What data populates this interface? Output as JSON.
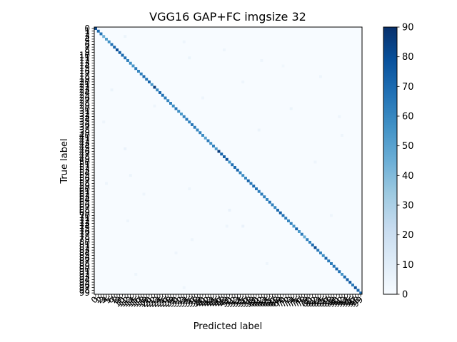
{
  "chart_data": {
    "type": "heatmap",
    "title": "VGG16 GAP+FC imgsize 32",
    "xlabel": "Predicted label",
    "ylabel": "True label",
    "n_classes": 100,
    "tick_labels": [
      "0",
      "1",
      "2",
      "3",
      "4",
      "5",
      "6",
      "7",
      "8",
      "9",
      "10",
      "11",
      "12",
      "13",
      "14",
      "15",
      "16",
      "17",
      "18",
      "19",
      "20",
      "21",
      "22",
      "23",
      "24",
      "25",
      "26",
      "27",
      "28",
      "29",
      "30",
      "31",
      "32",
      "33",
      "34",
      "35",
      "36",
      "37",
      "38",
      "39",
      "40",
      "41",
      "42",
      "43",
      "44",
      "45",
      "46",
      "47",
      "48",
      "49",
      "50",
      "51",
      "52",
      "53",
      "54",
      "55",
      "56",
      "57",
      "58",
      "59",
      "60",
      "61",
      "62",
      "63",
      "64",
      "65",
      "66",
      "67",
      "68",
      "69",
      "70",
      "71",
      "72",
      "73",
      "74",
      "75",
      "76",
      "77",
      "78",
      "79",
      "80",
      "81",
      "82",
      "83",
      "84",
      "85",
      "86",
      "87",
      "88",
      "89",
      "90",
      "91",
      "92",
      "93",
      "94",
      "95",
      "96",
      "97",
      "98",
      "99"
    ],
    "colormap": "Blues",
    "colorbar": {
      "min": 0,
      "max": 90,
      "ticks": [
        0,
        10,
        20,
        30,
        40,
        50,
        60,
        70,
        80,
        90
      ]
    },
    "diagonal_values": [
      82,
      70,
      66,
      45,
      52,
      57,
      68,
      72,
      80,
      75,
      70,
      68,
      62,
      58,
      55,
      64,
      60,
      63,
      70,
      66,
      72,
      55,
      86,
      60,
      72,
      68,
      64,
      60,
      62,
      58,
      66,
      58,
      54,
      62,
      65,
      62,
      66,
      64,
      60,
      62,
      58,
      50,
      64,
      58,
      62,
      55,
      86,
      72,
      75,
      80,
      56,
      68,
      70,
      72,
      62,
      58,
      60,
      72,
      66,
      70,
      68,
      64,
      64,
      62,
      60,
      68,
      62,
      60,
      70,
      75,
      68,
      64,
      60,
      62,
      55,
      72,
      54,
      64,
      46,
      62,
      62,
      70,
      82,
      66,
      62,
      58,
      72,
      64,
      64,
      66,
      72,
      68,
      55,
      70,
      74,
      76,
      64,
      80,
      72,
      68
    ],
    "off_diagonal": [
      {
        "true": 3,
        "pred": 11,
        "value": 5
      },
      {
        "true": 5,
        "pred": 33,
        "value": 4
      },
      {
        "true": 8,
        "pred": 48,
        "value": 4
      },
      {
        "true": 10,
        "pred": 10,
        "value": 70
      },
      {
        "true": 11,
        "pred": 35,
        "value": 5
      },
      {
        "true": 12,
        "pred": 62,
        "value": 4
      },
      {
        "true": 14,
        "pred": 70,
        "value": 3
      },
      {
        "true": 18,
        "pred": 84,
        "value": 4
      },
      {
        "true": 20,
        "pred": 55,
        "value": 4
      },
      {
        "true": 23,
        "pred": 6,
        "value": 5
      },
      {
        "true": 26,
        "pred": 40,
        "value": 4
      },
      {
        "true": 29,
        "pred": 22,
        "value": 4
      },
      {
        "true": 30,
        "pred": 73,
        "value": 5
      },
      {
        "true": 33,
        "pred": 91,
        "value": 4
      },
      {
        "true": 35,
        "pred": 3,
        "value": 4
      },
      {
        "true": 38,
        "pred": 61,
        "value": 5
      },
      {
        "true": 40,
        "pred": 92,
        "value": 4
      },
      {
        "true": 45,
        "pred": 11,
        "value": 6
      },
      {
        "true": 50,
        "pred": 82,
        "value": 4
      },
      {
        "true": 55,
        "pred": 13,
        "value": 5
      },
      {
        "true": 58,
        "pred": 4,
        "value": 4
      },
      {
        "true": 60,
        "pred": 35,
        "value": 4
      },
      {
        "true": 62,
        "pred": 18,
        "value": 4
      },
      {
        "true": 68,
        "pred": 50,
        "value": 6
      },
      {
        "true": 70,
        "pred": 88,
        "value": 4
      },
      {
        "true": 72,
        "pred": 12,
        "value": 4
      },
      {
        "true": 74,
        "pred": 49,
        "value": 4
      },
      {
        "true": 74,
        "pred": 55,
        "value": 6
      },
      {
        "true": 79,
        "pred": 36,
        "value": 4
      },
      {
        "true": 84,
        "pred": 30,
        "value": 4
      },
      {
        "true": 88,
        "pred": 64,
        "value": 4
      },
      {
        "true": 92,
        "pred": 15,
        "value": 4
      },
      {
        "true": 97,
        "pred": 33,
        "value": 4
      }
    ]
  }
}
